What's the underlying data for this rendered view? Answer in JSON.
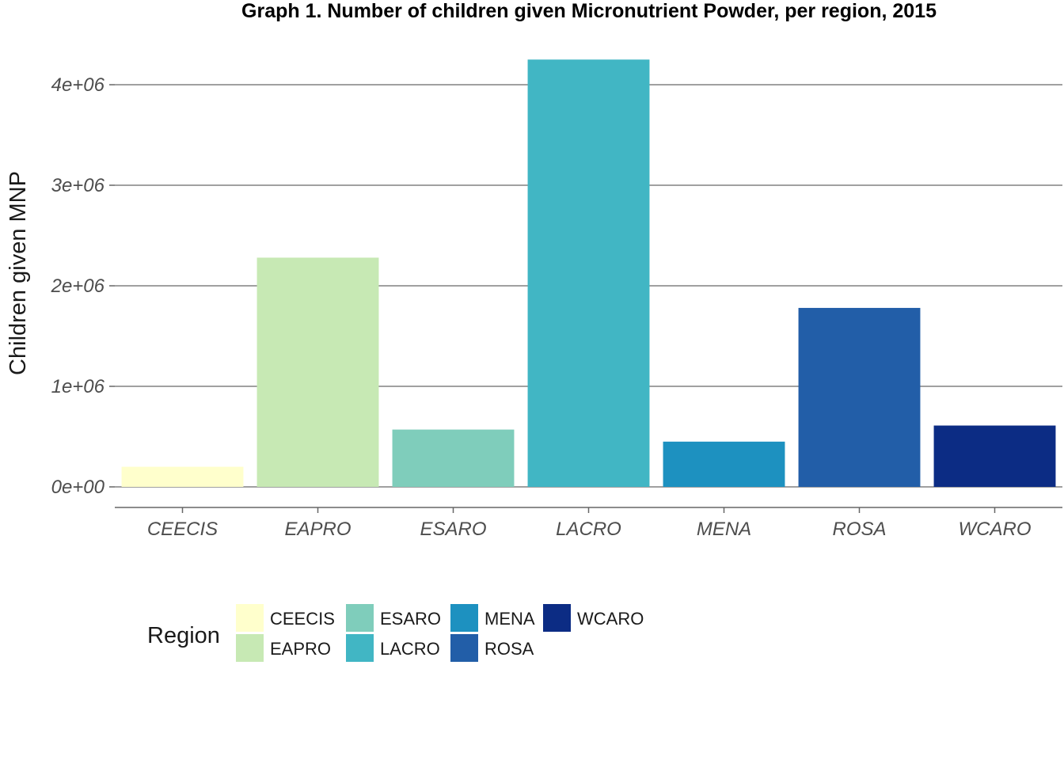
{
  "chart_data": {
    "type": "bar",
    "title": "Graph 1. Number of children given Micronutrient Powder, per region, 2015",
    "xlabel": "",
    "ylabel": "Children given MNP",
    "categories": [
      "CEECIS",
      "EAPRO",
      "ESARO",
      "LACRO",
      "MENA",
      "ROSA",
      "WCARO"
    ],
    "values": [
      200000,
      2280000,
      570000,
      4250000,
      450000,
      1780000,
      610000
    ],
    "colors": [
      "#FFFFCC",
      "#C7E9B4",
      "#7FCDBB",
      "#41B6C4",
      "#1D91C0",
      "#225EA8",
      "#0C2C84"
    ],
    "ylim": [
      0,
      4300000
    ],
    "y_ticks": [
      0,
      1000000,
      2000000,
      3000000,
      4000000
    ],
    "y_tick_labels": [
      "0e+00",
      "1e+06",
      "2e+06",
      "3e+06",
      "4e+06"
    ],
    "grid": "horizontal major lines",
    "legend": {
      "title": "Region",
      "position": "bottom-left",
      "entries": [
        "CEECIS",
        "EAPRO",
        "ESARO",
        "LACRO",
        "MENA",
        "ROSA",
        "WCARO"
      ]
    }
  }
}
